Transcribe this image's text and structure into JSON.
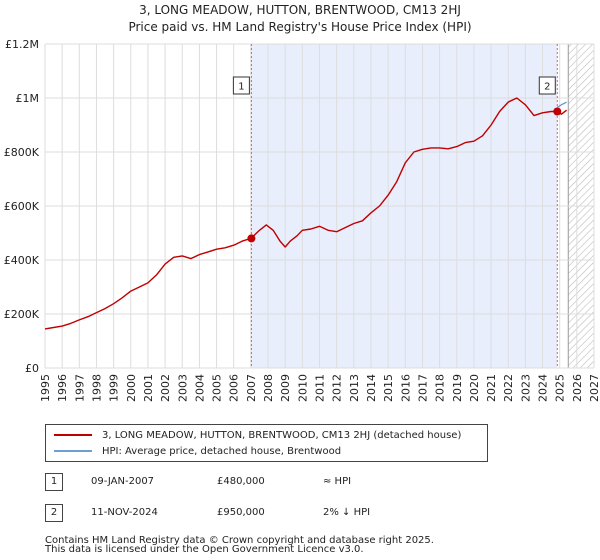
{
  "header": {
    "line1": "3, LONG MEADOW, HUTTON, BRENTWOOD, CM13 2HJ",
    "line2": "Price paid vs. HM Land Registry's House Price Index (HPI)"
  },
  "colors": {
    "price_line": "#c00000",
    "hpi_line": "#6f9fd0",
    "shade": "#e8eefb",
    "vline": "#e06060",
    "grid": "#dddddd"
  },
  "legend": {
    "price_label": "3, LONG MEADOW, HUTTON, BRENTWOOD, CM13 2HJ (detached house)",
    "hpi_label": "HPI: Average price, detached house, Brentwood"
  },
  "transactions": [
    {
      "num": "1",
      "date": "09-JAN-2007",
      "price": "£480,000",
      "hpi": "≈ HPI"
    },
    {
      "num": "2",
      "date": "11-NOV-2024",
      "price": "£950,000",
      "hpi": "2% ↓ HPI"
    }
  ],
  "footer": {
    "line1": "Contains HM Land Registry data © Crown copyright and database right 2025.",
    "line2": "This data is licensed under the Open Government Licence v3.0."
  },
  "chart_data": {
    "type": "line",
    "xlim": [
      1995,
      2027
    ],
    "ylim": [
      0,
      1200000
    ],
    "yticks": [
      0,
      200000,
      400000,
      600000,
      800000,
      1000000,
      1200000
    ],
    "ytick_labels": [
      "£0",
      "£200K",
      "£400K",
      "£600K",
      "£800K",
      "£1M",
      "£1.2M"
    ],
    "xticks": [
      1995,
      1996,
      1997,
      1998,
      1999,
      2000,
      2001,
      2002,
      2003,
      2004,
      2005,
      2006,
      2007,
      2008,
      2009,
      2010,
      2011,
      2012,
      2013,
      2014,
      2015,
      2016,
      2017,
      2018,
      2019,
      2020,
      2021,
      2022,
      2023,
      2024,
      2025,
      2026,
      2027
    ],
    "shaded_range": [
      2007.03,
      2024.86
    ],
    "hatched_from": 2025.5,
    "sales": [
      {
        "label": "1",
        "x": 2007.03,
        "y": 480000
      },
      {
        "label": "2",
        "x": 2024.86,
        "y": 950000
      }
    ],
    "series": [
      {
        "name": "3, LONG MEADOW, HUTTON, BRENTWOOD, CM13 2HJ (detached house)",
        "x": [
          1995,
          1995.5,
          1996,
          1996.5,
          1997,
          1997.5,
          1998,
          1998.5,
          1999,
          1999.5,
          2000,
          2000.5,
          2001,
          2001.5,
          2002,
          2002.5,
          2003,
          2003.5,
          2004,
          2004.5,
          2005,
          2005.5,
          2006,
          2006.5,
          2007,
          2007.5,
          2007.9,
          2008.3,
          2008.7,
          2009.0,
          2009.3,
          2009.7,
          2010,
          2010.5,
          2011,
          2011.5,
          2012,
          2012.5,
          2013,
          2013.5,
          2014,
          2014.5,
          2015,
          2015.5,
          2016,
          2016.5,
          2017,
          2017.5,
          2018,
          2018.5,
          2019,
          2019.5,
          2020,
          2020.5,
          2021,
          2021.5,
          2022,
          2022.5,
          2023,
          2023.5,
          2024,
          2024.5,
          2024.86,
          2025.1,
          2025.4
        ],
        "values": [
          145000,
          150000,
          155000,
          165000,
          178000,
          190000,
          205000,
          220000,
          238000,
          260000,
          285000,
          300000,
          315000,
          345000,
          385000,
          410000,
          415000,
          405000,
          420000,
          430000,
          440000,
          445000,
          455000,
          470000,
          480000,
          510000,
          530000,
          510000,
          470000,
          448000,
          470000,
          490000,
          510000,
          515000,
          525000,
          510000,
          505000,
          520000,
          535000,
          545000,
          575000,
          600000,
          640000,
          690000,
          760000,
          800000,
          810000,
          815000,
          815000,
          812000,
          820000,
          835000,
          840000,
          860000,
          900000,
          950000,
          985000,
          1000000,
          975000,
          935000,
          945000,
          950000,
          950000,
          940000,
          955000
        ]
      },
      {
        "name": "HPI: Average price, detached house, Brentwood",
        "x": [
          2024.86,
          2025.1,
          2025.4
        ],
        "values": [
          965000,
          975000,
          985000
        ]
      }
    ]
  }
}
